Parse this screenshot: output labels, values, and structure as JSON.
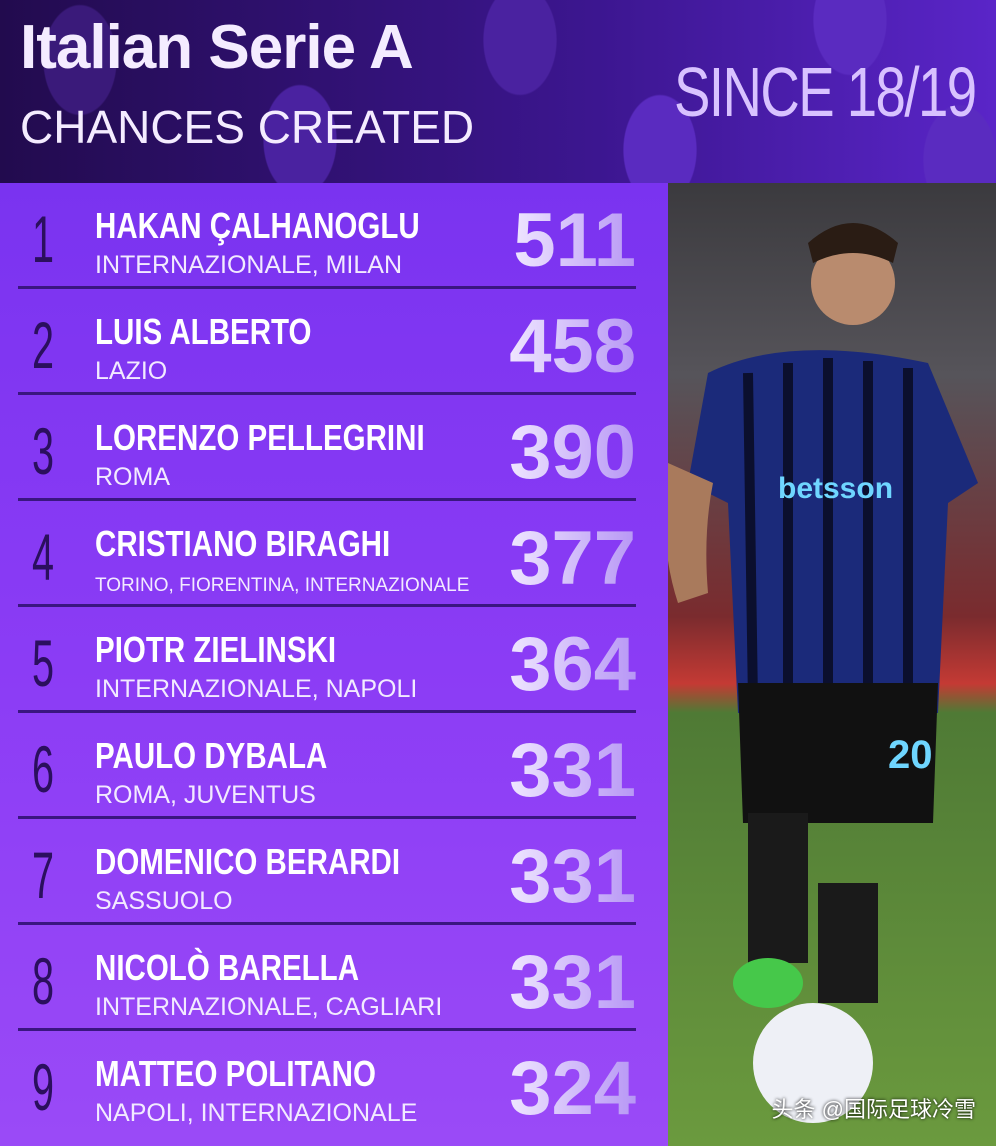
{
  "header": {
    "title": "Italian Serie A",
    "subtitle": "CHANCES CREATED",
    "since": "SINCE 18/19"
  },
  "rows": [
    {
      "rank": "1",
      "name": "HAKAN ÇALHANOGLU",
      "clubs": "INTERNAZIONALE, MILAN",
      "value": "511"
    },
    {
      "rank": "2",
      "name": "LUIS ALBERTO",
      "clubs": "LAZIO",
      "value": "458"
    },
    {
      "rank": "3",
      "name": "LORENZO PELLEGRINI",
      "clubs": "ROMA",
      "value": "390"
    },
    {
      "rank": "4",
      "name": "CRISTIANO BIRAGHI",
      "clubs": "TORINO, FIORENTINA, INTERNAZIONALE",
      "value": "377"
    },
    {
      "rank": "5",
      "name": "PIOTR ZIELINSKI",
      "clubs": "INTERNAZIONALE, NAPOLI",
      "value": "364"
    },
    {
      "rank": "6",
      "name": "PAULO DYBALA",
      "clubs": "ROMA, JUVENTUS",
      "value": "331"
    },
    {
      "rank": "7",
      "name": "DOMENICO BERARDI",
      "clubs": "SASSUOLO",
      "value": "331"
    },
    {
      "rank": "8",
      "name": "NICOLÒ BARELLA",
      "clubs": "INTERNAZIONALE, CAGLIARI",
      "value": "331"
    },
    {
      "rank": "9",
      "name": "MATTEO POLITANO",
      "clubs": "NAPOLI, INTERNAZIONALE",
      "value": "324"
    }
  ],
  "photo": {
    "sponsor": "betsson",
    "shirt_number": "20"
  },
  "watermark": "头条 @国际足球冷雪"
}
